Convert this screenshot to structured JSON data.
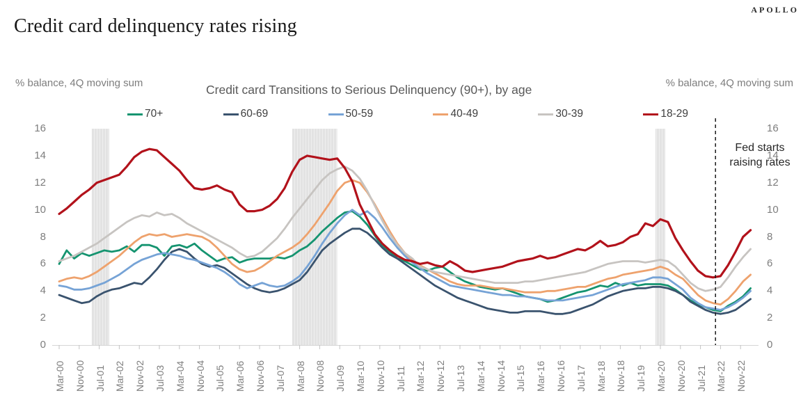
{
  "page": {
    "title": "Credit card delinquency rates rising",
    "brand": "APOLLO"
  },
  "chart_data": {
    "type": "line",
    "title": "Credit card Transitions to Serious Delinquency (90+), by age",
    "left_axis_label": "% balance, 4Q moving sum",
    "right_axis_label": "% balance, 4Q moving sum",
    "ylim": [
      0,
      16
    ],
    "yticks": [
      0,
      2,
      4,
      6,
      8,
      10,
      12,
      14,
      16
    ],
    "grid": false,
    "legend_position": "top",
    "x_start": "2000-Q1",
    "x_frequency": "quarterly",
    "x_tick_labels": [
      "Mar-00",
      "Nov-00",
      "Jul-01",
      "Mar-02",
      "Nov-02",
      "Jul-03",
      "Mar-04",
      "Nov-04",
      "Jul-05",
      "Mar-06",
      "Nov-06",
      "Jul-07",
      "Mar-08",
      "Nov-08",
      "Jul-09",
      "Mar-10",
      "Nov-10",
      "Jul-11",
      "Mar-12",
      "Nov-12",
      "Jul-13",
      "Mar-14",
      "Nov-14",
      "Jul-15",
      "Mar-16",
      "Nov-16",
      "Jul-17",
      "Mar-18",
      "Nov-18",
      "Jul-19",
      "Mar-20",
      "Nov-20",
      "Jul-21",
      "Mar-22",
      "Nov-22"
    ],
    "series": [
      {
        "name": "70+",
        "color": "#159470",
        "values": [
          6.0,
          7.0,
          6.4,
          6.8,
          6.6,
          6.8,
          7.0,
          6.9,
          7.0,
          7.3,
          6.9,
          7.4,
          7.4,
          7.2,
          6.6,
          7.3,
          7.4,
          7.2,
          7.5,
          7.0,
          6.6,
          6.2,
          6.4,
          6.5,
          6.1,
          6.3,
          6.4,
          6.4,
          6.4,
          6.5,
          6.4,
          6.6,
          7.0,
          7.3,
          7.8,
          8.4,
          8.9,
          9.4,
          9.8,
          9.9,
          9.5,
          8.9,
          8.1,
          7.3,
          6.9,
          6.4,
          6.2,
          5.9,
          5.6,
          5.5,
          5.7,
          5.8,
          5.4,
          5.0,
          4.7,
          4.5,
          4.3,
          4.2,
          4.1,
          4.2,
          4.0,
          3.8,
          3.6,
          3.5,
          3.4,
          3.2,
          3.3,
          3.5,
          3.7,
          3.9,
          4.0,
          4.2,
          4.4,
          4.3,
          4.6,
          4.4,
          4.6,
          4.4,
          4.5,
          4.5,
          4.5,
          4.4,
          4.1,
          3.7,
          3.3,
          3.0,
          2.8,
          2.6,
          2.5,
          2.9,
          3.2,
          3.6,
          4.2
        ]
      },
      {
        "name": "60-69",
        "color": "#3a536e",
        "values": [
          3.7,
          3.5,
          3.3,
          3.1,
          3.2,
          3.6,
          3.9,
          4.1,
          4.2,
          4.4,
          4.6,
          4.5,
          5.0,
          5.6,
          6.3,
          6.9,
          7.1,
          6.9,
          6.4,
          6.0,
          5.8,
          5.9,
          5.7,
          5.3,
          4.9,
          4.5,
          4.2,
          4.0,
          3.9,
          4.0,
          4.2,
          4.5,
          4.8,
          5.4,
          6.2,
          7.0,
          7.5,
          7.9,
          8.3,
          8.6,
          8.6,
          8.3,
          7.8,
          7.2,
          6.7,
          6.4,
          6.0,
          5.6,
          5.2,
          4.8,
          4.4,
          4.1,
          3.8,
          3.5,
          3.3,
          3.1,
          2.9,
          2.7,
          2.6,
          2.5,
          2.4,
          2.4,
          2.5,
          2.5,
          2.5,
          2.4,
          2.3,
          2.3,
          2.4,
          2.6,
          2.8,
          3.0,
          3.3,
          3.6,
          3.8,
          4.0,
          4.1,
          4.2,
          4.2,
          4.3,
          4.3,
          4.2,
          4.0,
          3.7,
          3.2,
          2.9,
          2.6,
          2.4,
          2.3,
          2.4,
          2.6,
          3.0,
          3.4
        ]
      },
      {
        "name": "50-59",
        "color": "#76a3d6",
        "values": [
          4.4,
          4.3,
          4.1,
          4.1,
          4.2,
          4.4,
          4.6,
          4.9,
          5.2,
          5.6,
          6.0,
          6.3,
          6.5,
          6.7,
          6.8,
          6.7,
          6.6,
          6.4,
          6.3,
          6.1,
          5.9,
          5.7,
          5.4,
          5.0,
          4.5,
          4.2,
          4.4,
          4.6,
          4.4,
          4.3,
          4.4,
          4.7,
          5.1,
          5.8,
          6.6,
          7.5,
          8.3,
          9.0,
          9.6,
          10.0,
          9.6,
          9.9,
          9.4,
          8.7,
          7.9,
          7.2,
          6.6,
          6.1,
          5.7,
          5.3,
          5.0,
          4.7,
          4.4,
          4.3,
          4.2,
          4.1,
          4.0,
          3.9,
          3.8,
          3.7,
          3.7,
          3.6,
          3.6,
          3.5,
          3.4,
          3.3,
          3.3,
          3.3,
          3.4,
          3.5,
          3.6,
          3.7,
          3.9,
          4.1,
          4.3,
          4.5,
          4.6,
          4.7,
          4.8,
          5.0,
          5.0,
          4.9,
          4.5,
          4.1,
          3.5,
          3.1,
          2.8,
          2.7,
          2.6,
          2.8,
          3.1,
          3.5,
          4.0
        ]
      },
      {
        "name": "40-49",
        "color": "#eea26d",
        "values": [
          4.7,
          4.9,
          5.0,
          4.9,
          5.1,
          5.4,
          5.8,
          6.2,
          6.6,
          7.1,
          7.6,
          8.0,
          8.2,
          8.1,
          8.2,
          8.0,
          8.1,
          8.2,
          8.1,
          8.0,
          7.7,
          7.2,
          6.6,
          6.0,
          5.6,
          5.4,
          5.5,
          5.8,
          6.2,
          6.6,
          6.9,
          7.2,
          7.6,
          8.2,
          8.9,
          9.7,
          10.5,
          11.4,
          12.0,
          12.2,
          12.0,
          11.3,
          10.4,
          9.4,
          8.4,
          7.5,
          6.8,
          6.3,
          5.9,
          5.6,
          5.3,
          5.0,
          4.7,
          4.5,
          4.4,
          4.4,
          4.4,
          4.3,
          4.2,
          4.2,
          4.1,
          4.0,
          3.9,
          3.9,
          3.9,
          4.0,
          4.0,
          4.1,
          4.2,
          4.3,
          4.3,
          4.5,
          4.7,
          4.9,
          5.0,
          5.2,
          5.3,
          5.4,
          5.5,
          5.6,
          5.8,
          5.6,
          5.2,
          4.9,
          4.3,
          3.7,
          3.3,
          3.1,
          3.0,
          3.4,
          4.0,
          4.7,
          5.2
        ]
      },
      {
        "name": "30-39",
        "color": "#c7c4c1",
        "values": [
          6.2,
          6.4,
          6.6,
          6.9,
          7.2,
          7.5,
          7.9,
          8.3,
          8.7,
          9.1,
          9.4,
          9.6,
          9.5,
          9.8,
          9.6,
          9.7,
          9.4,
          9.0,
          8.7,
          8.4,
          8.1,
          7.8,
          7.5,
          7.2,
          6.8,
          6.5,
          6.6,
          6.9,
          7.4,
          7.9,
          8.6,
          9.4,
          10.1,
          10.8,
          11.5,
          12.2,
          12.7,
          13.0,
          13.2,
          12.9,
          12.3,
          11.4,
          10.3,
          9.2,
          8.2,
          7.4,
          6.8,
          6.4,
          5.8,
          5.6,
          5.4,
          5.3,
          5.2,
          5.1,
          5.0,
          4.9,
          4.8,
          4.7,
          4.6,
          4.6,
          4.6,
          4.6,
          4.7,
          4.7,
          4.8,
          4.9,
          5.0,
          5.1,
          5.2,
          5.3,
          5.4,
          5.6,
          5.8,
          6.0,
          6.1,
          6.2,
          6.2,
          6.2,
          6.1,
          6.2,
          6.3,
          6.2,
          5.8,
          5.2,
          4.6,
          4.2,
          4.0,
          4.1,
          4.3,
          5.0,
          5.8,
          6.5,
          7.1
        ]
      },
      {
        "name": "18-29",
        "color": "#b2121b",
        "values": [
          9.7,
          10.1,
          10.6,
          11.1,
          11.5,
          12.0,
          12.2,
          12.4,
          12.6,
          13.2,
          13.9,
          14.3,
          14.5,
          14.4,
          13.9,
          13.4,
          12.9,
          12.2,
          11.6,
          11.5,
          11.6,
          11.8,
          11.5,
          11.3,
          10.4,
          9.9,
          9.9,
          10.0,
          10.3,
          10.8,
          11.6,
          12.8,
          13.7,
          14.0,
          13.9,
          13.8,
          13.7,
          13.8,
          13.1,
          12.1,
          10.4,
          9.3,
          8.2,
          7.5,
          7.0,
          6.6,
          6.3,
          6.2,
          6.0,
          6.1,
          5.9,
          5.8,
          6.2,
          5.9,
          5.5,
          5.4,
          5.5,
          5.6,
          5.7,
          5.8,
          6.0,
          6.2,
          6.3,
          6.4,
          6.6,
          6.4,
          6.5,
          6.7,
          6.9,
          7.1,
          7.0,
          7.3,
          7.7,
          7.3,
          7.4,
          7.6,
          8.0,
          8.2,
          9.0,
          8.8,
          9.3,
          9.1,
          7.9,
          7.0,
          6.2,
          5.5,
          5.1,
          5.0,
          5.1,
          5.9,
          6.9,
          8.0,
          8.5
        ]
      }
    ],
    "recession_bands": [
      {
        "start_month": 13,
        "end_month": 20
      },
      {
        "start_month": 93,
        "end_month": 111
      },
      {
        "start_month": 238,
        "end_month": 242
      }
    ],
    "annotation": {
      "lines": [
        "Fed starts",
        "raising rates"
      ],
      "line_month": 262
    }
  }
}
